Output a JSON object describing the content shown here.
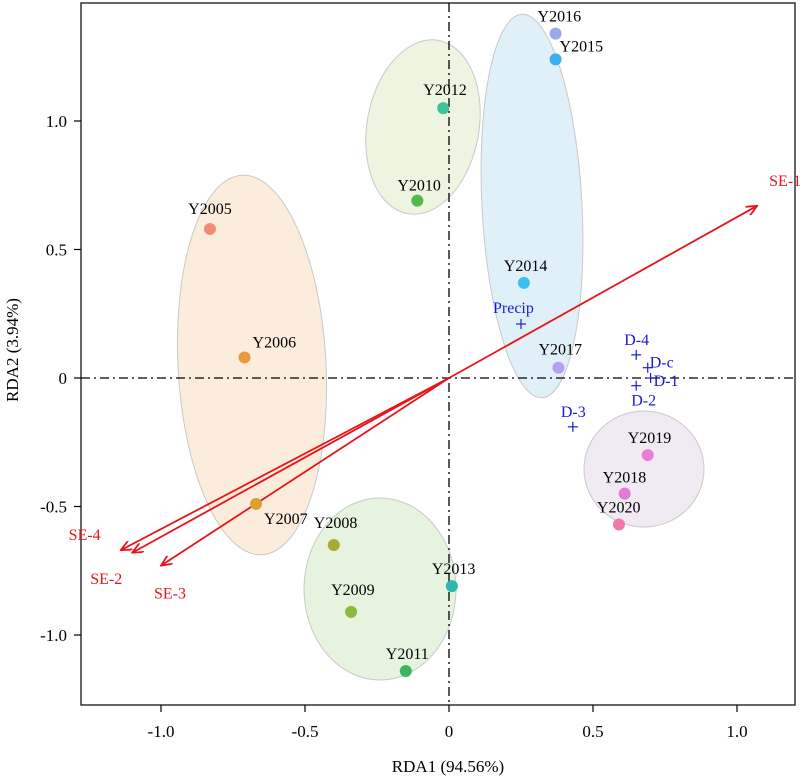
{
  "chart_data": {
    "type": "scatter",
    "xlabel": "RDA1 (94.56%)",
    "ylabel": "RDA2 (3.94%)",
    "xlim": [
      -1.3,
      1.3
    ],
    "ylim": [
      -1.25,
      1.4
    ],
    "xticks": [
      -1.0,
      -0.5,
      0,
      0.5,
      1.0
    ],
    "xtick_labels": [
      "-1.0",
      "-0.5",
      "0",
      "0.5",
      "1.0"
    ],
    "yticks": [
      -1.0,
      -0.5,
      0,
      0.5,
      1.0
    ],
    "ytick_labels": [
      "-1.0",
      "-0.5",
      "0",
      "0.5",
      "1.0"
    ],
    "grid": false,
    "reference_lines": [
      {
        "axis": "x",
        "value": 0,
        "style": "dash-dot"
      },
      {
        "axis": "y",
        "value": 0,
        "style": "dash-dot"
      }
    ],
    "points": [
      {
        "label": "Y2005",
        "x": -0.83,
        "y": 0.58,
        "color": "#f28b78"
      },
      {
        "label": "Y2006",
        "x": -0.71,
        "y": 0.08,
        "color": "#e89a3c"
      },
      {
        "label": "Y2007",
        "x": -0.67,
        "y": -0.49,
        "color": "#d9a233"
      },
      {
        "label": "Y2008",
        "x": -0.4,
        "y": -0.65,
        "color": "#a9a83a"
      },
      {
        "label": "Y2009",
        "x": -0.34,
        "y": -0.91,
        "color": "#8cba3a"
      },
      {
        "label": "Y2010",
        "x": -0.11,
        "y": 0.69,
        "color": "#55b848"
      },
      {
        "label": "Y2011",
        "x": -0.15,
        "y": -1.14,
        "color": "#3cb55c"
      },
      {
        "label": "Y2012",
        "x": -0.02,
        "y": 1.05,
        "color": "#3cc39a"
      },
      {
        "label": "Y2013",
        "x": 0.01,
        "y": -0.81,
        "color": "#2cb8b0"
      },
      {
        "label": "Y2014",
        "x": 0.26,
        "y": 0.37,
        "color": "#3fc0ec"
      },
      {
        "label": "Y2015",
        "x": 0.37,
        "y": 1.24,
        "color": "#3aaef0"
      },
      {
        "label": "Y2016",
        "x": 0.37,
        "y": 1.34,
        "color": "#9aa8f0"
      },
      {
        "label": "Y2017",
        "x": 0.38,
        "y": 0.04,
        "color": "#b7a0ee"
      },
      {
        "label": "Y2018",
        "x": 0.61,
        "y": -0.45,
        "color": "#e37ad6"
      },
      {
        "label": "Y2019",
        "x": 0.69,
        "y": -0.3,
        "color": "#ec7bd6"
      },
      {
        "label": "Y2020",
        "x": 0.59,
        "y": -0.57,
        "color": "#ef7aa9"
      }
    ],
    "point_label_offsets_note": "",
    "env_points": [
      {
        "label": "Precip",
        "x": 0.25,
        "y": 0.21
      },
      {
        "label": "D-4",
        "x": 0.65,
        "y": 0.09
      },
      {
        "label": "D-c",
        "x": 0.69,
        "y": 0.04
      },
      {
        "label": "D-1",
        "x": 0.7,
        "y": 0.0
      },
      {
        "label": "D-2",
        "x": 0.65,
        "y": -0.03
      },
      {
        "label": "D-3",
        "x": 0.43,
        "y": -0.19
      }
    ],
    "arrows": [
      {
        "label": "SE-1",
        "x": 1.07,
        "y": 0.67
      },
      {
        "label": "SE-4",
        "x": -1.14,
        "y": -0.67
      },
      {
        "label": "SE-2",
        "x": -1.1,
        "y": -0.68
      },
      {
        "label": "SE-3",
        "x": -1.0,
        "y": -0.73
      }
    ],
    "groups": [
      {
        "members": [
          "Y2005",
          "Y2006",
          "Y2007"
        ],
        "fill": "#fbe6cf"
      },
      {
        "members": [
          "Y2010",
          "Y2012"
        ],
        "fill": "#e7f0d6"
      },
      {
        "members": [
          "Y2014",
          "Y2015",
          "Y2016",
          "Y2017"
        ],
        "fill": "#d6ebf6"
      },
      {
        "members": [
          "Y2008",
          "Y2009",
          "Y2011",
          "Y2013"
        ],
        "fill": "#dcefd4"
      },
      {
        "members": [
          "Y2018",
          "Y2019",
          "Y2020"
        ],
        "fill": "#ebe3ee"
      }
    ],
    "colors": {
      "arrow": "#e8141b",
      "env": "#1a1ad6"
    }
  }
}
